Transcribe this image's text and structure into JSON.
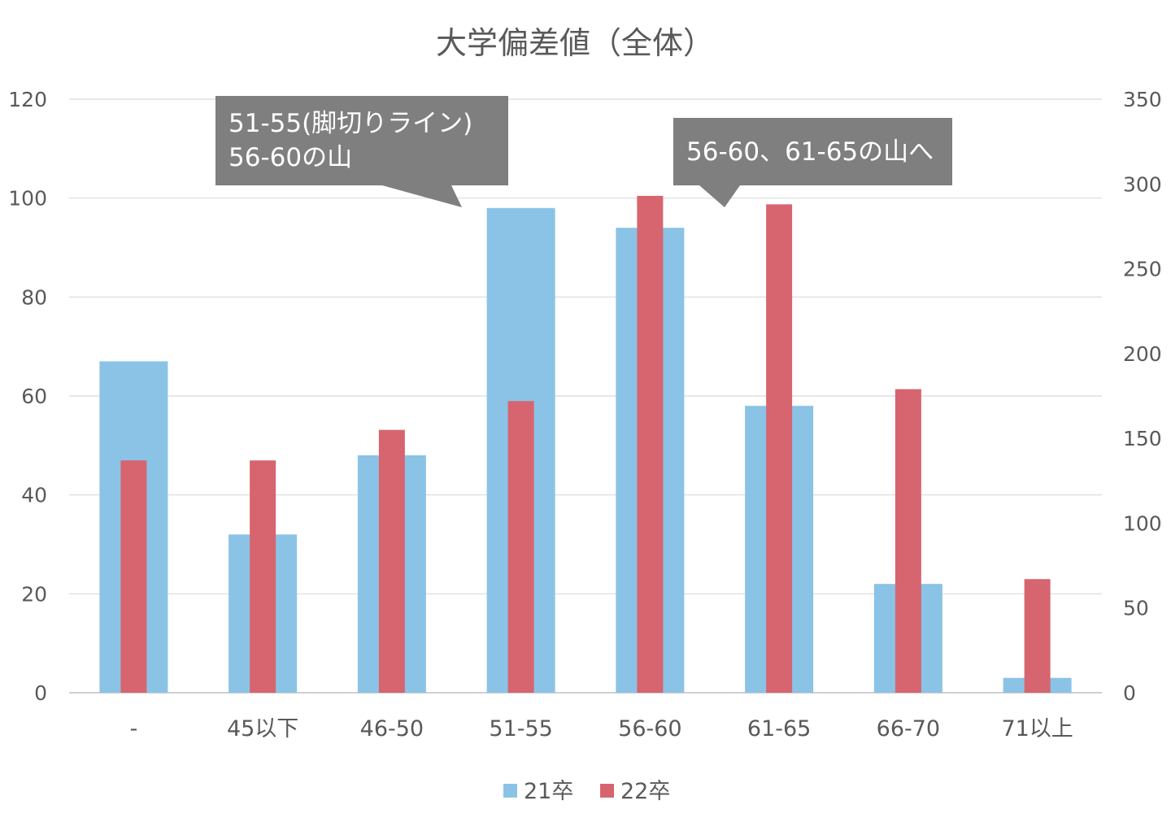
{
  "chart_data": {
    "type": "bar",
    "title": "大学偏差値（全体）",
    "categories": [
      "-",
      "45以下",
      "46-50",
      "51-55",
      "56-60",
      "61-65",
      "66-70",
      "71以上"
    ],
    "series": [
      {
        "name": "21卒",
        "axis": "left",
        "color": "#8bc3e6",
        "values": [
          67,
          32,
          48,
          98,
          94,
          58,
          22,
          3
        ]
      },
      {
        "name": "22卒",
        "axis": "right",
        "color": "#d6656f",
        "values": [
          137,
          137,
          155,
          172,
          293,
          288,
          179,
          67
        ]
      }
    ],
    "y_left": {
      "range": [
        0,
        120
      ],
      "ticks": [
        "0",
        "20",
        "40",
        "60",
        "80",
        "100",
        "120"
      ]
    },
    "y_right": {
      "range": [
        0,
        350
      ],
      "ticks": [
        "0",
        "50",
        "100",
        "150",
        "200",
        "250",
        "300",
        "350"
      ]
    },
    "grid": true,
    "legend": {
      "position": "bottom"
    },
    "annotations": [
      {
        "lines": [
          "51-55(脚切りライン)",
          "56-60の山"
        ],
        "points_to": "51-55",
        "fill": "#7f7f7f",
        "text_color": "#ffffff"
      },
      {
        "lines": [
          "56-60、61-65の山へ"
        ],
        "points_to": "61-65",
        "fill": "#7f7f7f",
        "text_color": "#ffffff"
      }
    ]
  }
}
